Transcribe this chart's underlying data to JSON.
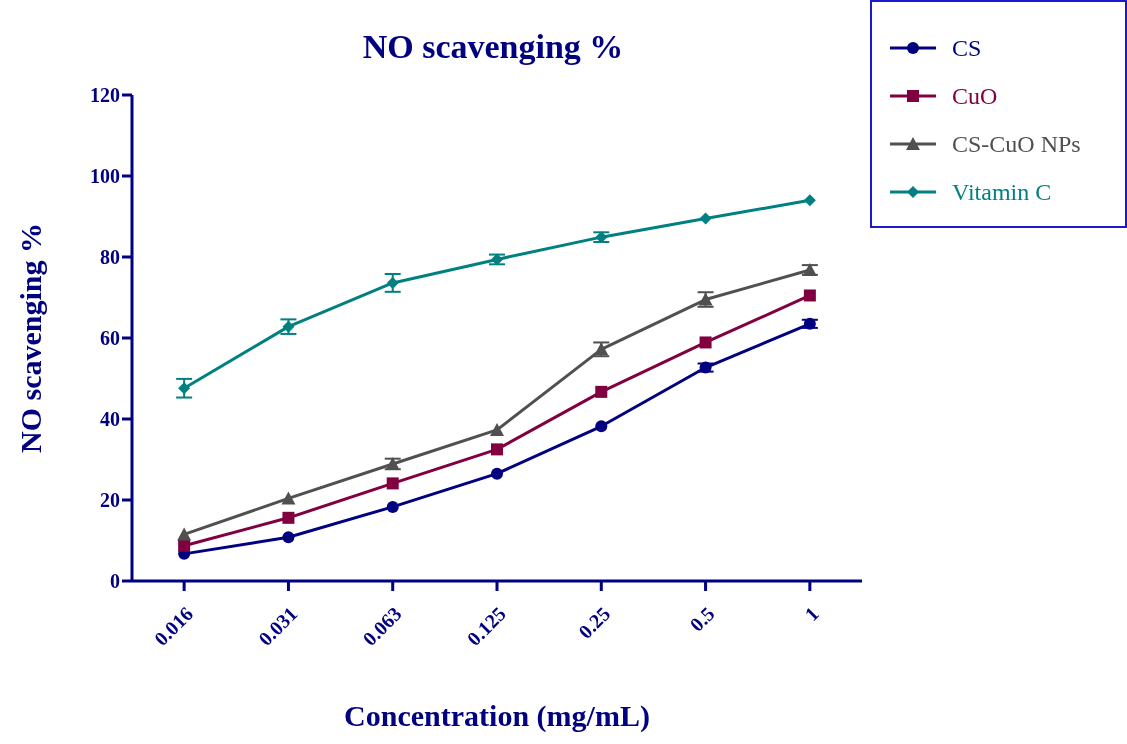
{
  "chart_data": {
    "type": "line",
    "title": "NO scavenging %",
    "xlabel": "Concentration (mg/mL)",
    "ylabel": "NO scavenging %",
    "categories": [
      "0.016",
      "0.031",
      "0.063",
      "0.125",
      "0.25",
      "0.5",
      "1"
    ],
    "ylim": [
      0,
      120
    ],
    "yticks": [
      0,
      20,
      40,
      60,
      80,
      100,
      120
    ],
    "grid": false,
    "legend": "top right",
    "line_style": "solid",
    "series": [
      {
        "name": "CS",
        "color": "#000080",
        "marker": "circle",
        "values": [
          6.7,
          10.8,
          18.3,
          26.5,
          38.2,
          52.7,
          63.5
        ],
        "errors": [
          null,
          null,
          null,
          null,
          null,
          1,
          1
        ]
      },
      {
        "name": "CuO",
        "color": "#800040",
        "marker": "square",
        "values": [
          8.7,
          15.6,
          24.1,
          32.5,
          46.7,
          58.9,
          70.5
        ],
        "errors": [
          null,
          null,
          null,
          null,
          null,
          null,
          null
        ]
      },
      {
        "name": "CS-CuO NPs",
        "color": "#505050",
        "marker": "triangle",
        "values": [
          11.5,
          20.4,
          28.9,
          37.3,
          57.2,
          69.5,
          76.8
        ],
        "errors": [
          null,
          null,
          1.3,
          null,
          1.7,
          1.8,
          1.2
        ]
      },
      {
        "name": "Vitamin C",
        "color": "#008080",
        "marker": "diamond",
        "values": [
          47.6,
          62.8,
          73.6,
          79.4,
          84.9,
          89.5,
          94.0
        ],
        "errors": [
          2.3,
          1.8,
          2.2,
          1.2,
          1.2,
          null,
          null
        ]
      }
    ]
  }
}
